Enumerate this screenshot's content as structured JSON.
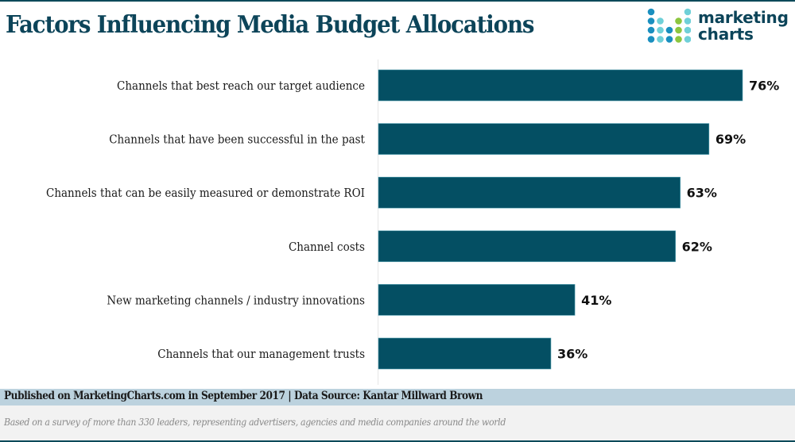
{
  "header": {
    "title": "Factors Influencing Media Budget Allocations",
    "logo": {
      "line1": "marketing",
      "line2": "charts",
      "icon": "dot-grid-logo-icon",
      "dot_colors": {
        "dark": "#1a8fbf",
        "cyan": "#6fd0d8",
        "green": "#8cc63f"
      },
      "dot_pattern": [
        [
          "dark",
          null,
          null,
          null,
          "cyan"
        ],
        [
          "dark",
          "cyan",
          null,
          "green",
          "cyan"
        ],
        [
          "dark",
          "cyan",
          "dark",
          "green",
          "cyan"
        ],
        [
          "dark",
          "cyan",
          "dark",
          "green",
          "cyan"
        ]
      ]
    }
  },
  "colors": {
    "bar": "#044f63",
    "title": "#0c4459",
    "footer_band": "#bcd2de"
  },
  "chart_data": {
    "type": "bar",
    "orientation": "horizontal",
    "title": "Factors Influencing Media Budget Allocations",
    "xlabel": "",
    "ylabel": "",
    "xlim": [
      0,
      76
    ],
    "grid": false,
    "legend": "none",
    "value_suffix": "%",
    "categories": [
      "Channels that best reach our target audience",
      "Channels that have been successful in the past",
      "Channels that can be easily measured or demonstrate ROI",
      "Channel costs",
      "New marketing channels / industry innovations",
      "Channels that our management trusts"
    ],
    "values": [
      76,
      69,
      63,
      62,
      41,
      36
    ],
    "data_labels": [
      "76%",
      "69%",
      "63%",
      "62%",
      "41%",
      "36%"
    ]
  },
  "footer": {
    "published": "Published on MarketingCharts.com in September 2017 | Data Source: Kantar Millward Brown",
    "note": "Based on a survey of more than 330 leaders, representing advertisers, agencies and media companies around the world"
  }
}
